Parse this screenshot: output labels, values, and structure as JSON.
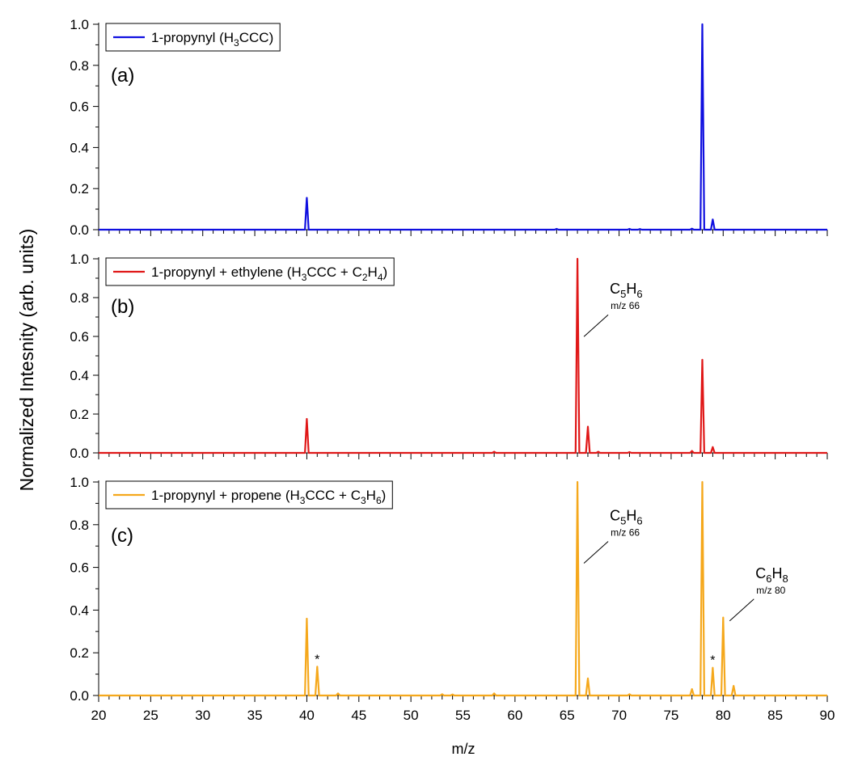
{
  "chart_data": {
    "type": "line",
    "xlabel": "m/z",
    "ylabel": "Normalized Intesnity (arb. units)",
    "xlim": [
      20,
      90
    ],
    "x_ticks": [
      "20",
      "25",
      "30",
      "35",
      "40",
      "45",
      "50",
      "55",
      "60",
      "65",
      "70",
      "75",
      "80",
      "85",
      "90"
    ],
    "ylim": [
      0,
      1.0
    ],
    "y_ticks": [
      "0.0",
      "0.2",
      "0.4",
      "0.6",
      "0.8",
      "1.0"
    ],
    "grid": false,
    "panels": [
      {
        "label": "(a)",
        "color": "#1010e0",
        "legend": {
          "prefix": "1-propynyl (H",
          "sub1": "3",
          "mid": "CCC)",
          "sub2": "",
          "suffix": ""
        },
        "peaks": [
          {
            "mz": 40,
            "intensity": 0.155
          },
          {
            "mz": 64,
            "intensity": 0.004
          },
          {
            "mz": 71,
            "intensity": 0.004
          },
          {
            "mz": 72,
            "intensity": 0.003
          },
          {
            "mz": 77,
            "intensity": 0.005
          },
          {
            "mz": 78,
            "intensity": 1.0
          },
          {
            "mz": 79,
            "intensity": 0.05
          }
        ],
        "annotations": [],
        "stars": []
      },
      {
        "label": "(b)",
        "color": "#e01818",
        "legend": {
          "prefix": "1-propynyl + ethylene (H",
          "sub1": "3",
          "mid": "CCC + C",
          "sub2": "2",
          "suffix": "H",
          "sub3": "4",
          "end": ")"
        },
        "peaks": [
          {
            "mz": 40,
            "intensity": 0.175
          },
          {
            "mz": 58,
            "intensity": 0.006
          },
          {
            "mz": 66,
            "intensity": 1.0
          },
          {
            "mz": 67,
            "intensity": 0.135
          },
          {
            "mz": 68,
            "intensity": 0.006
          },
          {
            "mz": 71,
            "intensity": 0.004
          },
          {
            "mz": 77,
            "intensity": 0.01
          },
          {
            "mz": 78,
            "intensity": 0.48
          },
          {
            "mz": 79,
            "intensity": 0.03
          }
        ],
        "annotations": [
          {
            "formula_main": "C",
            "formula_sub1": "5",
            "formula_mid": "H",
            "formula_sub2": "6",
            "mz_label": "m/z 66",
            "peak_mz": 66,
            "y": 0.82
          }
        ],
        "stars": []
      },
      {
        "label": "(c)",
        "color": "#f5a81c",
        "legend": {
          "prefix": "1-propynyl + propene (H",
          "sub1": "3",
          "mid": "CCC + C",
          "sub2": "3",
          "suffix": "H",
          "sub3": "6",
          "end": ")"
        },
        "peaks": [
          {
            "mz": 40,
            "intensity": 0.36
          },
          {
            "mz": 41,
            "intensity": 0.135
          },
          {
            "mz": 43,
            "intensity": 0.01
          },
          {
            "mz": 53,
            "intensity": 0.006
          },
          {
            "mz": 54,
            "intensity": 0.005
          },
          {
            "mz": 58,
            "intensity": 0.01
          },
          {
            "mz": 66,
            "intensity": 1.0
          },
          {
            "mz": 67,
            "intensity": 0.08
          },
          {
            "mz": 71,
            "intensity": 0.006
          },
          {
            "mz": 77,
            "intensity": 0.03
          },
          {
            "mz": 78,
            "intensity": 1.0
          },
          {
            "mz": 79,
            "intensity": 0.13
          },
          {
            "mz": 80,
            "intensity": 0.365
          },
          {
            "mz": 81,
            "intensity": 0.045
          }
        ],
        "annotations": [
          {
            "formula_main": "C",
            "formula_sub1": "5",
            "formula_mid": "H",
            "formula_sub2": "6",
            "mz_label": "m/z 66",
            "peak_mz": 66,
            "y": 0.82
          },
          {
            "formula_main": "C",
            "formula_sub1": "6",
            "formula_mid": "H",
            "formula_sub2": "8",
            "mz_label": "m/z 80",
            "peak_mz": 80,
            "y": 0.55
          }
        ],
        "stars": [
          {
            "mz": 41,
            "intensity": 0.135,
            "text": "*"
          },
          {
            "mz": 79,
            "intensity": 0.13,
            "text": "*"
          }
        ]
      }
    ]
  }
}
